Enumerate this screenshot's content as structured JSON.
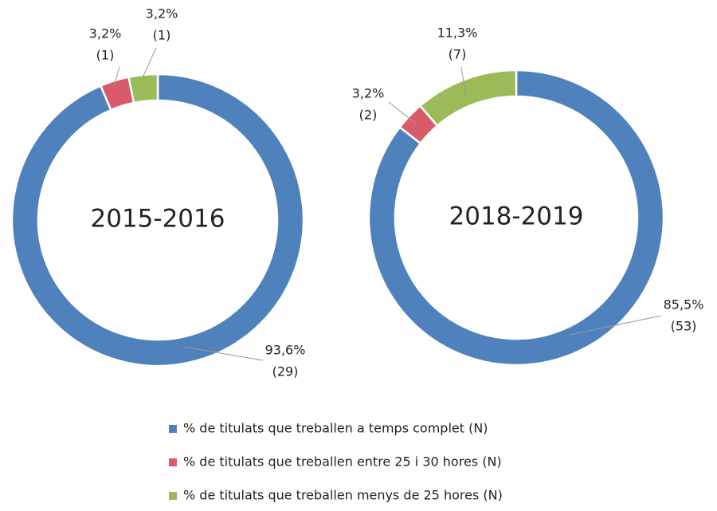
{
  "chart_data": [
    {
      "type": "donut",
      "title": "2015-2016",
      "values": [
        93.6,
        3.2,
        3.2
      ],
      "value_labels": [
        "93,6%",
        "3,2%",
        "3,2%"
      ],
      "count_labels": [
        "(29)",
        "(1)",
        "(1)"
      ],
      "colors": [
        "#4f81bd",
        "#d95b6b",
        "#9bbb59"
      ]
    },
    {
      "type": "donut",
      "title": "2018-2019",
      "values": [
        85.5,
        3.2,
        11.3
      ],
      "value_labels": [
        "85,5%",
        "3,2%",
        "11,3%"
      ],
      "count_labels": [
        "(53)",
        "(2)",
        "(7)"
      ],
      "colors": [
        "#4f81bd",
        "#d95b6b",
        "#9bbb59"
      ]
    }
  ],
  "legend": {
    "labels": [
      "% de titulats que treballen a temps complet (N)",
      "% de titulats que treballen entre 25 i 30 hores (N)",
      "% de titulats que treballen menys de 25 hores (N)"
    ],
    "colors": [
      "#4f81bd",
      "#d95b6b",
      "#9bbb59"
    ]
  }
}
